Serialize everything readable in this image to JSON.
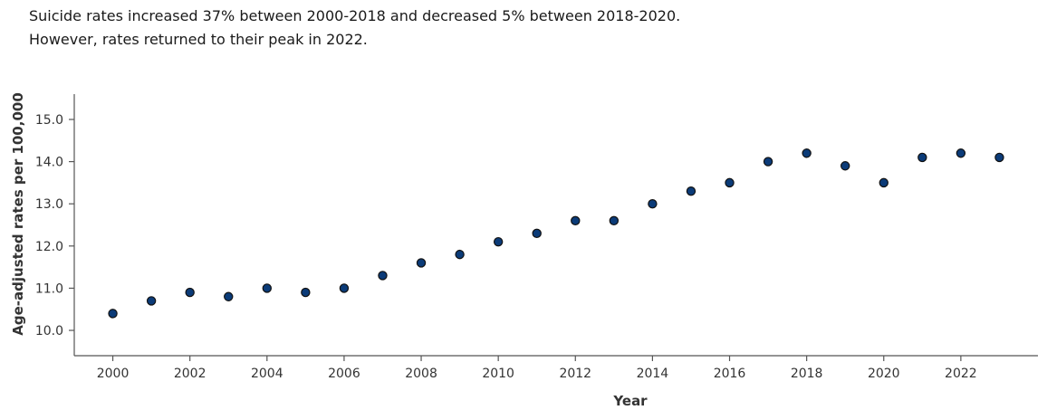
{
  "header": {
    "line1": "Suicide rates increased 37% between 2000-2018 and decreased 5% between 2018-2020.",
    "line2": "However, rates returned to their peak in 2022."
  },
  "chart_data": {
    "type": "scatter",
    "xlabel": "Year",
    "ylabel": "Age-adjusted rates per 100,000",
    "x": [
      2000,
      2001,
      2002,
      2003,
      2004,
      2005,
      2006,
      2007,
      2008,
      2009,
      2010,
      2011,
      2012,
      2013,
      2014,
      2015,
      2016,
      2017,
      2018,
      2019,
      2020,
      2021,
      2022,
      2023
    ],
    "y": [
      10.4,
      10.7,
      10.9,
      10.8,
      11.0,
      10.9,
      11.0,
      11.3,
      11.6,
      11.8,
      12.1,
      12.3,
      12.6,
      12.6,
      13.0,
      13.3,
      13.5,
      14.0,
      14.2,
      13.9,
      13.5,
      14.1,
      14.2,
      14.1
    ],
    "xlim": [
      1999,
      2024
    ],
    "ylim": [
      9.4,
      15.6
    ],
    "xticks": [
      "2000",
      "2002",
      "2004",
      "2006",
      "2008",
      "2010",
      "2012",
      "2014",
      "2016",
      "2018",
      "2020",
      "2022"
    ],
    "yticks": [
      "10.0",
      "11.0",
      "12.0",
      "13.0",
      "14.0",
      "15.0"
    ],
    "point_color": "#0b3b78",
    "grid": false
  }
}
